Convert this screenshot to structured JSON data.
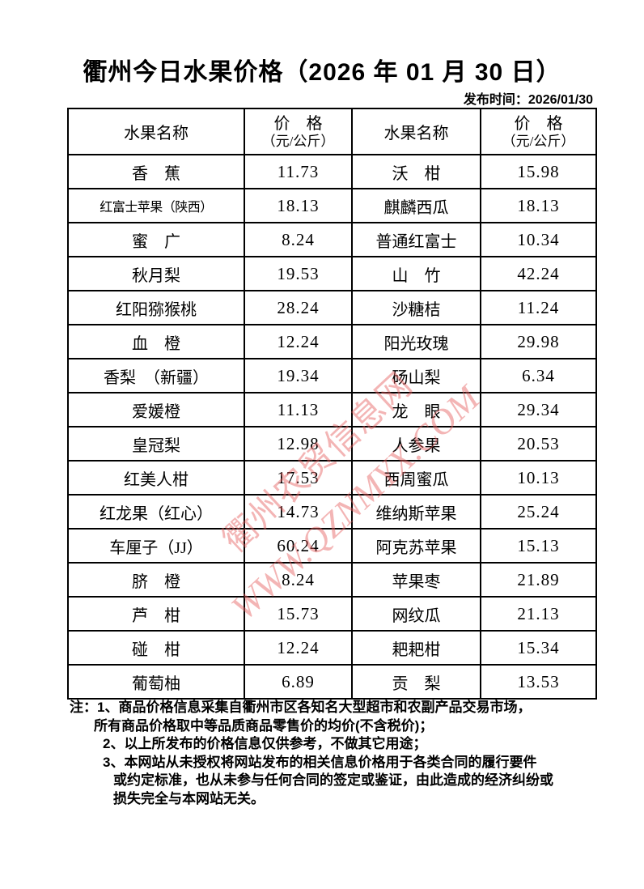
{
  "header": {
    "title": "衢州今日水果价格（2026 年 01 月 30 日）",
    "publish_time": "发布时间：2026/01/30"
  },
  "table": {
    "header": {
      "name": "水果名称",
      "price": "价　格",
      "unit": "（元/公斤）"
    },
    "rows": [
      {
        "left_name": "香　蕉",
        "left_price": "11.73",
        "right_name": "沃　柑",
        "right_price": "15.98"
      },
      {
        "left_name": "红富士苹果（陕西）",
        "left_price": "18.13",
        "right_name": "麒麟西瓜",
        "right_price": "18.13"
      },
      {
        "left_name": "蜜　广",
        "left_price": "8.24",
        "right_name": "普通红富士",
        "right_price": "10.34"
      },
      {
        "left_name": "秋月梨",
        "left_price": "19.53",
        "right_name": "山　竹",
        "right_price": "42.24"
      },
      {
        "left_name": "红阳猕猴桃",
        "left_price": "28.24",
        "right_name": "沙糖桔",
        "right_price": "11.24"
      },
      {
        "left_name": "血　橙",
        "left_price": "12.24",
        "right_name": "阳光玫瑰",
        "right_price": "29.98"
      },
      {
        "left_name": "香梨　（新疆）",
        "left_price": "19.34",
        "right_name": "砀山梨",
        "right_price": "6.34"
      },
      {
        "left_name": "爱媛橙",
        "left_price": "11.13",
        "right_name": "龙　眼",
        "right_price": "29.34"
      },
      {
        "left_name": "皇冠梨",
        "left_price": "12.98",
        "right_name": "人参果",
        "right_price": "20.53"
      },
      {
        "left_name": "红美人柑",
        "left_price": "17.53",
        "right_name": "西周蜜瓜",
        "right_price": "10.13"
      },
      {
        "left_name": "红龙果（红心）",
        "left_price": "14.73",
        "right_name": "维纳斯苹果",
        "right_price": "25.24"
      },
      {
        "left_name": "车厘子（JJ）",
        "left_price": "60.24",
        "right_name": "阿克苏苹果",
        "right_price": "15.13"
      },
      {
        "left_name": "脐　橙",
        "left_price": "8.24",
        "right_name": "苹果枣",
        "right_price": "21.89"
      },
      {
        "left_name": "芦　柑",
        "left_price": "15.73",
        "right_name": "网纹瓜",
        "right_price": "21.13"
      },
      {
        "left_name": "碰　柑",
        "left_price": "12.24",
        "right_name": "耙耙柑",
        "right_price": "15.34"
      },
      {
        "left_name": "葡萄柚",
        "left_price": "6.89",
        "right_name": "贡　梨",
        "right_price": "13.53"
      }
    ]
  },
  "notes": [
    {
      "text": "注：1、商品价格信息采集自衢州市区各知名大型超市和农副产品交易市场，",
      "indent": 0
    },
    {
      "text": "所有商品价格取中等品质商品零售价的均价(不含税价)；",
      "indent": 1
    },
    {
      "text": "2、以上所发布的价格信息仅供参考，不做其它用途；",
      "indent": 2
    },
    {
      "text": "3、本网站从未授权将网站发布的相关信息价格用于各类合同的履行要件",
      "indent": 2
    },
    {
      "text": "或约定标准，也从未参与任何合同的签定或鉴证，由此造成的经济纠纷或",
      "indent": 3
    },
    {
      "text": "损失完全与本网站无关。",
      "indent": 3
    }
  ],
  "watermark": {
    "line1": "衢州农贸信息网",
    "line2": "WWW.QZNMYX.COM",
    "color": "#e45c5c"
  }
}
